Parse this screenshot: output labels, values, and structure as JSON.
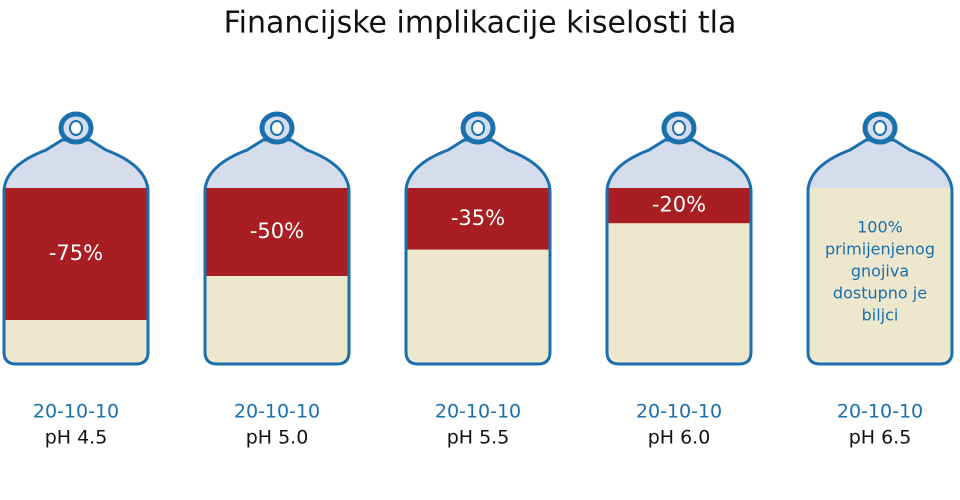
{
  "chart_data": {
    "type": "bag",
    "title": "Financijske implikacije kiselosti tla",
    "categories": [
      "pH 4.5",
      "pH 5.0",
      "pH 5.5",
      "pH 6.0",
      "pH 6.5"
    ],
    "formulas": [
      "20-10-10",
      "20-10-10",
      "20-10-10",
      "20-10-10",
      "20-10-10"
    ],
    "values": [
      -75,
      -50,
      -35,
      -20,
      null
    ],
    "value_labels": [
      "-75%",
      "-50%",
      "-35%",
      "-20%",
      null
    ],
    "ylim": [
      0,
      -100
    ],
    "annotation": [
      "100%",
      "primijenjenog",
      "gnojiva",
      "dostupno je",
      "biljci"
    ],
    "color": "#a81e22"
  }
}
